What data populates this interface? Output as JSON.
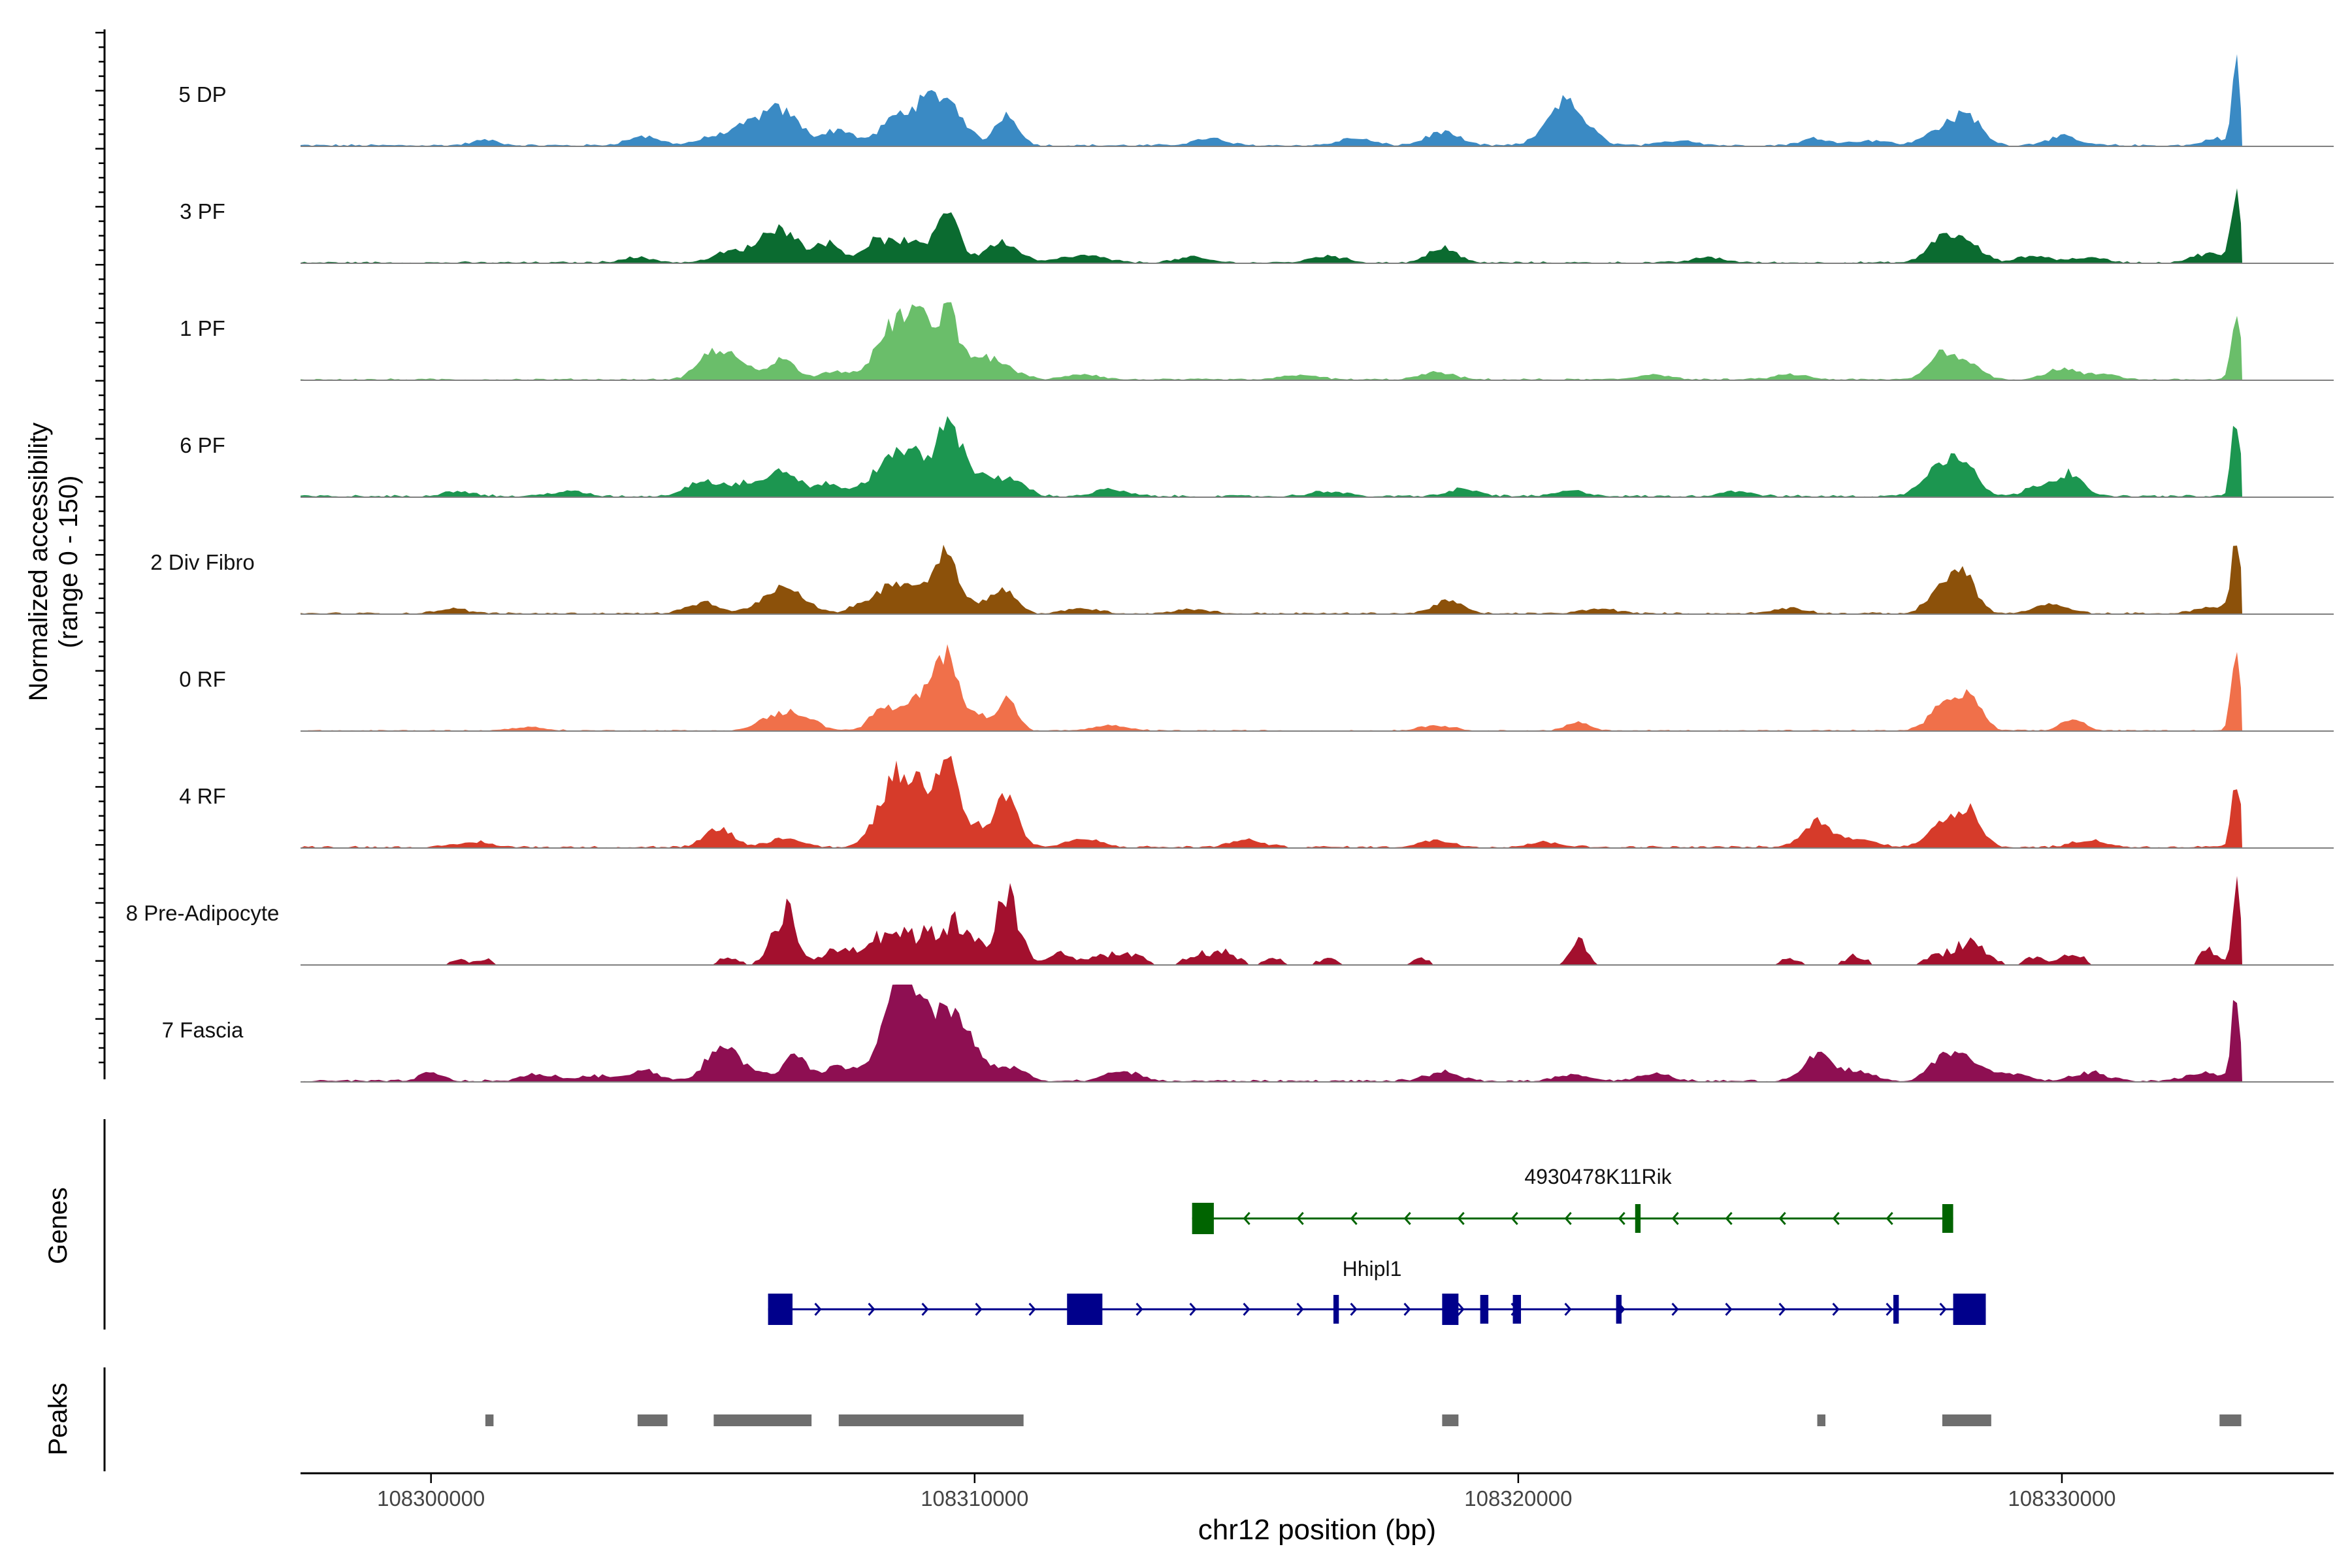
{
  "chart_data": {
    "type": "area",
    "title": "",
    "xlabel": "chr12 position (bp)",
    "ylabel_line1": "Normalized accessibility",
    "ylabel_line2": "(range 0 - 150)",
    "ylim": [
      0,
      150
    ],
    "xlim": [
      108297600,
      108335000
    ],
    "x_ticks": [
      108300000,
      108310000,
      108320000,
      108330000
    ],
    "x_tick_labels": [
      "108300000",
      "108310000",
      "108320000",
      "108330000"
    ],
    "tracks": [
      {
        "name": "5 DP",
        "color": "#3A8AC4",
        "peaks": [
          [
            108301000,
            6,
            250
          ],
          [
            108303900,
            10,
            300
          ],
          [
            108305400,
            12,
            400
          ],
          [
            108306000,
            20,
            300
          ],
          [
            108306500,
            35,
            300
          ],
          [
            108307500,
            18,
            300
          ],
          [
            108308500,
            28,
            250
          ],
          [
            108309000,
            35,
            250
          ],
          [
            108309500,
            50,
            300
          ],
          [
            108310600,
            38,
            200
          ],
          [
            108314300,
            8,
            300
          ],
          [
            108317000,
            8,
            300
          ],
          [
            108318600,
            15,
            300
          ],
          [
            108320800,
            45,
            300
          ],
          [
            108321200,
            14,
            300
          ],
          [
            108323000,
            6,
            300
          ],
          [
            108325500,
            8,
            300
          ],
          [
            108326500,
            6,
            300
          ],
          [
            108327800,
            20,
            300
          ],
          [
            108328300,
            30,
            250
          ],
          [
            108330000,
            10,
            300
          ],
          [
            108332800,
            8,
            200
          ],
          [
            108333200,
            100,
            70
          ]
        ],
        "baseline_noise": 2.5,
        "ymax": 110
      },
      {
        "name": "3 PF",
        "color": "#0B6B30",
        "peaks": [
          [
            108303800,
            6,
            300
          ],
          [
            108305500,
            12,
            300
          ],
          [
            108306200,
            18,
            300
          ],
          [
            108306500,
            28,
            300
          ],
          [
            108307300,
            22,
            250
          ],
          [
            108308200,
            25,
            250
          ],
          [
            108308800,
            24,
            250
          ],
          [
            108309500,
            65,
            200
          ],
          [
            108310500,
            24,
            300
          ],
          [
            108312000,
            8,
            400
          ],
          [
            108314000,
            6,
            300
          ],
          [
            108316500,
            8,
            300
          ],
          [
            108318600,
            18,
            250
          ],
          [
            108323500,
            6,
            300
          ],
          [
            108327800,
            30,
            250
          ],
          [
            108328300,
            20,
            250
          ],
          [
            108329500,
            8,
            300
          ],
          [
            108330500,
            6,
            300
          ],
          [
            108332700,
            10,
            300
          ],
          [
            108333200,
            75,
            90
          ]
        ],
        "baseline_noise": 2,
        "ymax": 110
      },
      {
        "name": "1 PF",
        "color": "#6ABE6A",
        "peaks": [
          [
            108305200,
            30,
            280
          ],
          [
            108305700,
            15,
            300
          ],
          [
            108306500,
            24,
            220
          ],
          [
            108307500,
            10,
            300
          ],
          [
            108308300,
            25,
            250
          ],
          [
            108308600,
            48,
            250
          ],
          [
            108309000,
            62,
            220
          ],
          [
            108309500,
            80,
            170
          ],
          [
            108310000,
            25,
            250
          ],
          [
            108310500,
            15,
            300
          ],
          [
            108312000,
            6,
            300
          ],
          [
            108316000,
            6,
            300
          ],
          [
            108318500,
            8,
            300
          ],
          [
            108322500,
            6,
            300
          ],
          [
            108325000,
            6,
            300
          ],
          [
            108327800,
            30,
            250
          ],
          [
            108328300,
            18,
            250
          ],
          [
            108330000,
            12,
            300
          ],
          [
            108330800,
            6,
            250
          ],
          [
            108333200,
            70,
            90
          ]
        ],
        "baseline_noise": 2,
        "ymax": 110
      },
      {
        "name": "6 PF",
        "color": "#1C9650",
        "peaks": [
          [
            108300500,
            6,
            300
          ],
          [
            108302500,
            6,
            300
          ],
          [
            108305000,
            18,
            300
          ],
          [
            108305800,
            15,
            300
          ],
          [
            108306500,
            28,
            250
          ],
          [
            108307300,
            14,
            300
          ],
          [
            108308300,
            30,
            280
          ],
          [
            108308800,
            50,
            250
          ],
          [
            108309500,
            80,
            220
          ],
          [
            108310000,
            25,
            300
          ],
          [
            108310700,
            20,
            250
          ],
          [
            108312500,
            8,
            300
          ],
          [
            108316500,
            6,
            300
          ],
          [
            108319000,
            8,
            300
          ],
          [
            108321000,
            6,
            300
          ],
          [
            108324000,
            6,
            300
          ],
          [
            108327700,
            30,
            280
          ],
          [
            108328200,
            38,
            250
          ],
          [
            108329700,
            15,
            300
          ],
          [
            108330200,
            24,
            200
          ],
          [
            108333200,
            95,
            80
          ]
        ],
        "baseline_noise": 2.5,
        "ymax": 110
      },
      {
        "name": "2 Div Fibro",
        "color": "#8C510A",
        "peaks": [
          [
            108300400,
            5,
            300
          ],
          [
            108305000,
            12,
            300
          ],
          [
            108306300,
            20,
            300
          ],
          [
            108306700,
            18,
            300
          ],
          [
            108308000,
            12,
            250
          ],
          [
            108308500,
            30,
            250
          ],
          [
            108309000,
            28,
            250
          ],
          [
            108309500,
            75,
            190
          ],
          [
            108310200,
            14,
            300
          ],
          [
            108310600,
            20,
            200
          ],
          [
            108312000,
            6,
            300
          ],
          [
            108314000,
            5,
            300
          ],
          [
            108318700,
            16,
            250
          ],
          [
            108321500,
            6,
            300
          ],
          [
            108325000,
            6,
            300
          ],
          [
            108327800,
            30,
            250
          ],
          [
            108328200,
            45,
            220
          ],
          [
            108329800,
            10,
            300
          ],
          [
            108332800,
            8,
            300
          ],
          [
            108333200,
            95,
            80
          ]
        ],
        "baseline_noise": 2,
        "ymax": 110
      },
      {
        "name": "0 RF",
        "color": "#F0704A",
        "peaks": [
          [
            108301800,
            4,
            300
          ],
          [
            108306300,
            14,
            300
          ],
          [
            108306800,
            16,
            300
          ],
          [
            108308300,
            24,
            220
          ],
          [
            108308800,
            18,
            250
          ],
          [
            108309100,
            28,
            220
          ],
          [
            108309500,
            85,
            200
          ],
          [
            108310000,
            18,
            250
          ],
          [
            108310600,
            35,
            180
          ],
          [
            108312500,
            6,
            300
          ],
          [
            108318500,
            6,
            300
          ],
          [
            108321100,
            10,
            200
          ],
          [
            108327800,
            28,
            250
          ],
          [
            108328300,
            40,
            220
          ],
          [
            108330200,
            14,
            200
          ],
          [
            108333200,
            105,
            80
          ]
        ],
        "baseline_noise": 1.5,
        "ymax": 110
      },
      {
        "name": "4 RF",
        "color": "#D63B2A",
        "peaks": [
          [
            108300800,
            6,
            300
          ],
          [
            108305300,
            22,
            250
          ],
          [
            108306500,
            10,
            300
          ],
          [
            108308300,
            36,
            250
          ],
          [
            108308600,
            60,
            200
          ],
          [
            108309000,
            66,
            200
          ],
          [
            108309500,
            115,
            180
          ],
          [
            108310000,
            25,
            250
          ],
          [
            108310600,
            60,
            200
          ],
          [
            108312000,
            10,
            300
          ],
          [
            108315000,
            8,
            300
          ],
          [
            108318500,
            8,
            300
          ],
          [
            108320500,
            6,
            300
          ],
          [
            108325500,
            30,
            250
          ],
          [
            108326300,
            10,
            300
          ],
          [
            108327800,
            30,
            250
          ],
          [
            108328300,
            40,
            220
          ],
          [
            108330500,
            8,
            300
          ],
          [
            108333200,
            82,
            80
          ]
        ],
        "baseline_noise": 2.5,
        "ymax": 110
      },
      {
        "name": "8 Pre-Adipocyte",
        "color": "#A3102E",
        "peaks": [
          [
            108300500,
            8,
            150
          ],
          [
            108301000,
            8,
            150
          ],
          [
            108305500,
            10,
            200
          ],
          [
            108306500,
            75,
            220
          ],
          [
            108307500,
            22,
            250
          ],
          [
            108308200,
            35,
            250
          ],
          [
            108308700,
            40,
            250
          ],
          [
            108309300,
            40,
            250
          ],
          [
            108309700,
            35,
            200
          ],
          [
            108310000,
            25,
            200
          ],
          [
            108310600,
            85,
            220
          ],
          [
            108311600,
            20,
            200
          ],
          [
            108312500,
            15,
            300
          ],
          [
            108313000,
            8,
            200
          ],
          [
            108314200,
            15,
            300
          ],
          [
            108314700,
            12,
            200
          ],
          [
            108315500,
            8,
            200
          ],
          [
            108316500,
            8,
            200
          ],
          [
            108318200,
            10,
            150
          ],
          [
            108321100,
            30,
            150
          ],
          [
            108325000,
            8,
            200
          ],
          [
            108326200,
            12,
            200
          ],
          [
            108327700,
            10,
            250
          ],
          [
            108328300,
            30,
            300
          ],
          [
            108329500,
            10,
            200
          ],
          [
            108330200,
            15,
            200
          ],
          [
            108332700,
            20,
            150
          ],
          [
            108333200,
            100,
            80
          ]
        ],
        "baseline_noise": 0,
        "ymax": 110
      },
      {
        "name": "7 Fascia",
        "color": "#8E0F52",
        "peaks": [
          [
            108300000,
            10,
            200
          ],
          [
            108302000,
            8,
            300
          ],
          [
            108303000,
            6,
            300
          ],
          [
            108303900,
            12,
            300
          ],
          [
            108305300,
            35,
            260
          ],
          [
            108305800,
            15,
            300
          ],
          [
            108306700,
            28,
            220
          ],
          [
            108307500,
            18,
            250
          ],
          [
            108308300,
            40,
            250
          ],
          [
            108308700,
            110,
            220
          ],
          [
            108309200,
            60,
            250
          ],
          [
            108309600,
            60,
            220
          ],
          [
            108310000,
            30,
            250
          ],
          [
            108310700,
            15,
            250
          ],
          [
            108312700,
            12,
            300
          ],
          [
            108318600,
            10,
            300
          ],
          [
            108321000,
            8,
            300
          ],
          [
            108322500,
            8,
            300
          ],
          [
            108325500,
            30,
            250
          ],
          [
            108326200,
            12,
            300
          ],
          [
            108327800,
            28,
            250
          ],
          [
            108328300,
            22,
            250
          ],
          [
            108329000,
            10,
            300
          ],
          [
            108330500,
            10,
            300
          ],
          [
            108332600,
            10,
            300
          ],
          [
            108333200,
            95,
            80
          ]
        ],
        "baseline_noise": 2.5,
        "ymax": 110
      }
    ],
    "genes": [
      {
        "name": "4930478K11Rik",
        "color": "#006400",
        "strand": "-",
        "start": 108314000,
        "end": 108328000,
        "exons": [
          [
            108314000,
            108314400
          ],
          [
            108322150,
            108322250
          ],
          [
            108327800,
            108328000
          ]
        ]
      },
      {
        "name": "Hhipl1",
        "color": "#00008B",
        "strand": "+",
        "start": 108306200,
        "end": 108328600,
        "exons": [
          [
            108306200,
            108306650
          ],
          [
            108311700,
            108312350
          ],
          [
            108316600,
            108316700
          ],
          [
            108318600,
            108318900
          ],
          [
            108319300,
            108319450
          ],
          [
            108319900,
            108320050
          ],
          [
            108321800,
            108321900
          ],
          [
            108326900,
            108327000
          ],
          [
            108328000,
            108328600
          ]
        ]
      }
    ],
    "peaks_track": [
      [
        108301000,
        108301150
      ],
      [
        108303800,
        108304350
      ],
      [
        108305200,
        108307000
      ],
      [
        108307500,
        108310900
      ],
      [
        108318600,
        108318900
      ],
      [
        108325500,
        108325650
      ],
      [
        108327800,
        108328700
      ],
      [
        108332900,
        108333300
      ]
    ],
    "panel_labels": {
      "genes": "Genes",
      "peaks": "Peaks"
    }
  },
  "colors": {
    "peaks": "#6E6E6E",
    "baseline": "#7F7F7F"
  }
}
